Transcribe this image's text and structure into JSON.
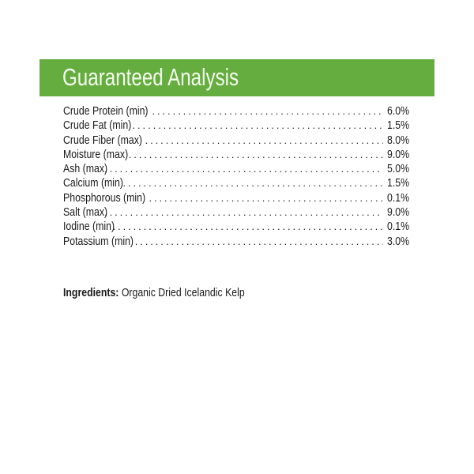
{
  "header": {
    "title": "Guaranteed Analysis",
    "band_color": "#66ad3f",
    "title_color": "#f3faee"
  },
  "analysis": [
    {
      "label": "Crude Protein (min)",
      "value": "6.0%"
    },
    {
      "label": "Crude Fat (min)",
      "value": "1.5%"
    },
    {
      "label": "Crude Fiber (max)",
      "value": "8.0%"
    },
    {
      "label": "Moisture (max)",
      "value": "9.0%"
    },
    {
      "label": "Ash (max)",
      "value": "5.0%"
    },
    {
      "label": "Calcium (min)",
      "value": "1.5%"
    },
    {
      "label": "Phosphorous (min)",
      "value": "0.1%"
    },
    {
      "label": "Salt (max)",
      "value": "9.0%"
    },
    {
      "label": "Iodine (min)",
      "value": "0.1%"
    },
    {
      "label": "Potassium (min)",
      "value": "3.0%"
    }
  ],
  "ingredients": {
    "label": "Ingredients:",
    "value": "Organic Dried Icelandic Kelp"
  }
}
